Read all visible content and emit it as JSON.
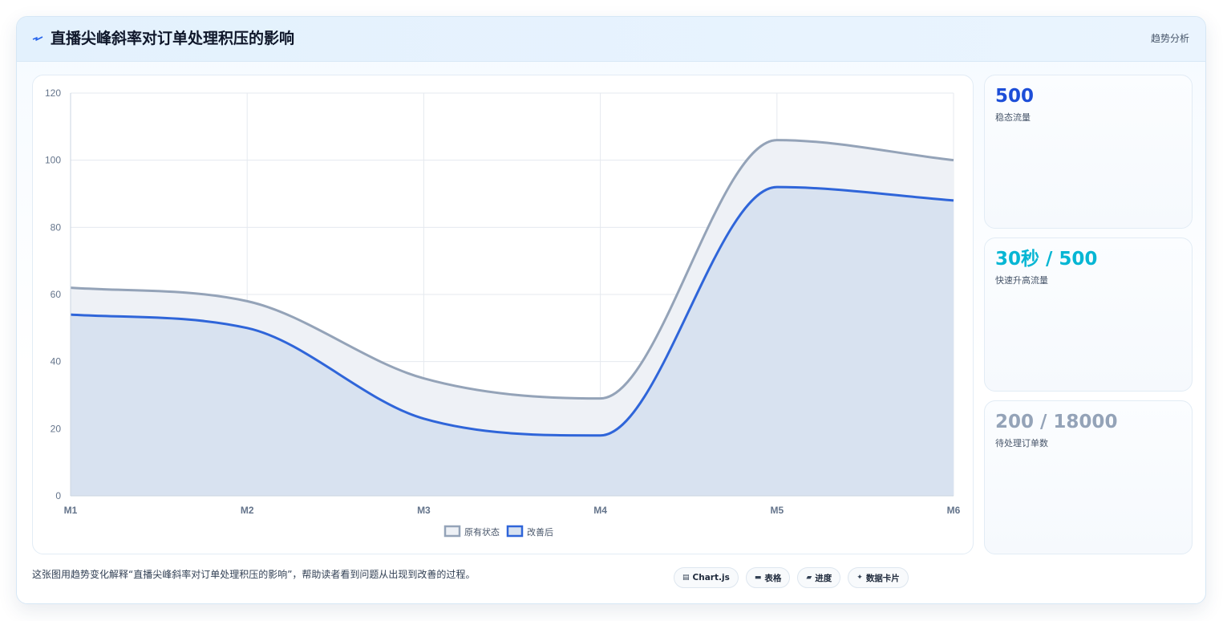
{
  "header": {
    "title": "直播尖峰斜率对订单处理积压的影响",
    "tag": "趋势分析",
    "icon": "bolt-icon"
  },
  "stats": [
    {
      "value": "500",
      "label": "稳态流量",
      "color": "#1d4ed8"
    },
    {
      "value": "30秒 / 500",
      "label": "快速升高流量",
      "color": "#06b6d4"
    },
    {
      "value": "200 / 18000",
      "label": "待处理订单数",
      "color": "#94a3b8"
    }
  ],
  "footer": {
    "caption": "这张图用趋势变化解释“直播尖峰斜率对订单处理积压的影响”，帮助读者看到问题从出现到改善的过程。",
    "chips": [
      {
        "icon": "chart-icon",
        "glyph": "▤",
        "label": "Chart.js"
      },
      {
        "icon": "table-icon",
        "glyph": "▬",
        "label": "表格"
      },
      {
        "icon": "progress-icon",
        "glyph": "▰",
        "label": "进度"
      },
      {
        "icon": "card-icon",
        "glyph": "✦",
        "label": "数据卡片"
      }
    ]
  },
  "chart_data": {
    "type": "area",
    "categories": [
      "M1",
      "M2",
      "M3",
      "M4",
      "M5",
      "M6"
    ],
    "ylim": [
      0,
      120
    ],
    "yticks": [
      0,
      20,
      40,
      60,
      80,
      100,
      120
    ],
    "grid": true,
    "legend_position": "bottom",
    "series": [
      {
        "name": "原有状态",
        "values": [
          62,
          58,
          35,
          29,
          106,
          100
        ],
        "color": "#94a3b8",
        "fill": "#eef1f6"
      },
      {
        "name": "改善后",
        "values": [
          54,
          50,
          23,
          18,
          92,
          88
        ],
        "color": "#2f65d9",
        "fill": "#d8e2f0"
      }
    ]
  }
}
